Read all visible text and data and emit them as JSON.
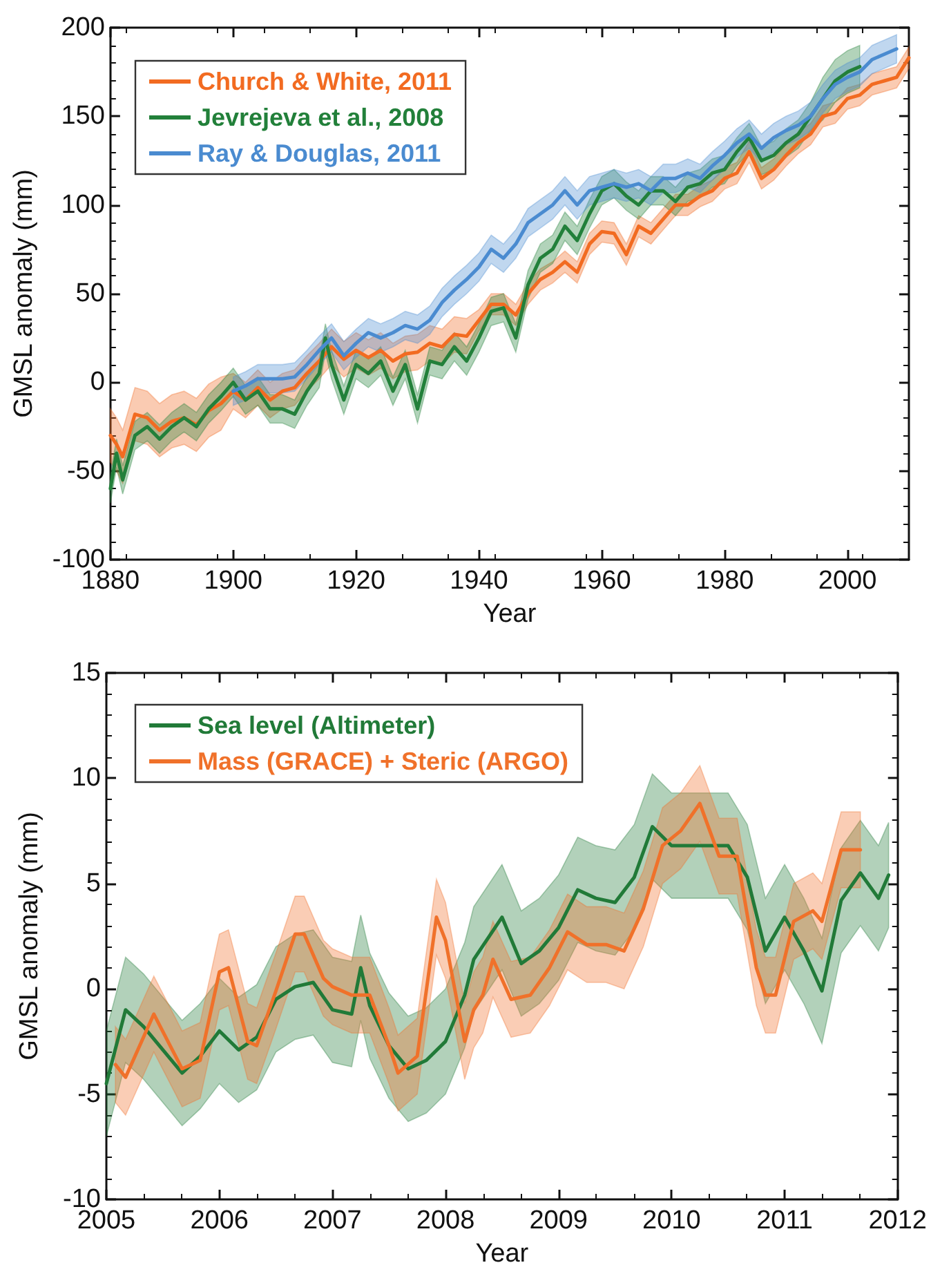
{
  "chart_data": [
    {
      "type": "line",
      "xlabel": "Year",
      "ylabel": "GMSL anomaly (mm)",
      "xlim": [
        1880,
        2010
      ],
      "xticks": [
        1880,
        1900,
        1920,
        1940,
        1960,
        1980,
        2000
      ],
      "ylim": [
        -100,
        200
      ],
      "yticks": [
        -100,
        -50,
        0,
        50,
        100,
        150,
        200
      ],
      "grid": false,
      "legend": "top left",
      "marker": "none",
      "line_style": "solid",
      "series": [
        {
          "name": "Church & White, 2011",
          "color": "#f26b21",
          "x": [
            1880,
            1881,
            1882,
            1884,
            1886,
            1888,
            1890,
            1892,
            1894,
            1896,
            1898,
            1900,
            1902,
            1904,
            1906,
            1908,
            1910,
            1912,
            1914,
            1916,
            1918,
            1920,
            1922,
            1924,
            1926,
            1928,
            1930,
            1932,
            1934,
            1936,
            1938,
            1940,
            1942,
            1944,
            1946,
            1948,
            1950,
            1952,
            1954,
            1956,
            1958,
            1960,
            1962,
            1964,
            1966,
            1968,
            1970,
            1972,
            1974,
            1976,
            1978,
            1980,
            1982,
            1984,
            1986,
            1988,
            1990,
            1992,
            1994,
            1996,
            1998,
            2000,
            2002,
            2004,
            2006,
            2008,
            2010
          ],
          "values": [
            -30,
            -35,
            -42,
            -18,
            -20,
            -27,
            -22,
            -20,
            -24,
            -16,
            -12,
            -5,
            -10,
            -3,
            -10,
            -5,
            -3,
            5,
            12,
            20,
            13,
            18,
            14,
            18,
            12,
            16,
            17,
            22,
            20,
            27,
            26,
            35,
            44,
            44,
            38,
            50,
            58,
            62,
            68,
            62,
            78,
            85,
            84,
            72,
            88,
            84,
            92,
            100,
            100,
            105,
            108,
            115,
            118,
            130,
            115,
            120,
            128,
            135,
            140,
            150,
            152,
            160,
            162,
            168,
            170,
            172,
            183
          ],
          "lower": [
            -45,
            -50,
            -57,
            -33,
            -35,
            -42,
            -37,
            -35,
            -39,
            -31,
            -27,
            -15,
            -20,
            -13,
            -20,
            -15,
            -13,
            -5,
            2,
            10,
            3,
            8,
            4,
            8,
            2,
            6,
            7,
            12,
            10,
            17,
            16,
            29,
            38,
            38,
            32,
            44,
            52,
            56,
            62,
            56,
            72,
            79,
            78,
            66,
            82,
            78,
            86,
            94,
            94,
            99,
            102,
            109,
            112,
            124,
            109,
            114,
            122,
            129,
            134,
            144,
            146,
            154,
            156,
            162,
            164,
            166,
            177
          ],
          "upper": [
            -15,
            -20,
            -27,
            -3,
            -5,
            -12,
            -7,
            -5,
            -9,
            -1,
            3,
            5,
            0,
            7,
            0,
            5,
            7,
            15,
            22,
            30,
            23,
            28,
            24,
            28,
            22,
            26,
            27,
            32,
            30,
            37,
            36,
            41,
            50,
            50,
            44,
            56,
            64,
            68,
            74,
            68,
            84,
            91,
            90,
            78,
            94,
            90,
            98,
            106,
            106,
            111,
            114,
            121,
            124,
            136,
            121,
            126,
            134,
            141,
            146,
            156,
            158,
            166,
            168,
            174,
            176,
            178,
            189
          ]
        },
        {
          "name": "Jevrejeva et al., 2008",
          "color": "#22803a",
          "x": [
            1880,
            1881,
            1882,
            1884,
            1886,
            1888,
            1890,
            1892,
            1894,
            1896,
            1898,
            1900,
            1902,
            1904,
            1906,
            1908,
            1910,
            1912,
            1914,
            1915,
            1916,
            1918,
            1920,
            1922,
            1924,
            1926,
            1928,
            1930,
            1932,
            1934,
            1936,
            1938,
            1940,
            1942,
            1944,
            1946,
            1948,
            1950,
            1952,
            1954,
            1956,
            1958,
            1960,
            1962,
            1964,
            1966,
            1968,
            1970,
            1972,
            1974,
            1976,
            1978,
            1980,
            1982,
            1984,
            1986,
            1988,
            1990,
            1992,
            1994,
            1996,
            1998,
            2000,
            2002
          ],
          "values": [
            -60,
            -40,
            -55,
            -30,
            -25,
            -32,
            -25,
            -20,
            -25,
            -15,
            -8,
            0,
            -10,
            -5,
            -15,
            -15,
            -18,
            -5,
            5,
            25,
            10,
            -10,
            10,
            5,
            12,
            -5,
            10,
            -15,
            12,
            10,
            20,
            12,
            25,
            40,
            42,
            25,
            55,
            70,
            75,
            88,
            80,
            95,
            108,
            112,
            105,
            100,
            108,
            108,
            102,
            110,
            112,
            118,
            120,
            130,
            138,
            125,
            128,
            135,
            140,
            150,
            160,
            170,
            175,
            178
          ],
          "lower": [
            -68,
            -48,
            -63,
            -38,
            -33,
            -40,
            -33,
            -28,
            -33,
            -23,
            -16,
            -8,
            -18,
            -13,
            -23,
            -23,
            -26,
            -13,
            -3,
            17,
            2,
            -18,
            2,
            -3,
            4,
            -13,
            2,
            -23,
            4,
            2,
            12,
            4,
            17,
            32,
            34,
            17,
            47,
            62,
            67,
            80,
            72,
            87,
            100,
            104,
            97,
            92,
            100,
            100,
            94,
            102,
            104,
            110,
            112,
            122,
            130,
            117,
            120,
            127,
            132,
            142,
            148,
            158,
            163,
            166
          ],
          "upper": [
            -52,
            -32,
            -47,
            -22,
            -17,
            -24,
            -17,
            -12,
            -17,
            -7,
            0,
            8,
            -2,
            3,
            -7,
            -7,
            -10,
            3,
            13,
            33,
            18,
            -2,
            18,
            13,
            20,
            3,
            18,
            -7,
            20,
            18,
            28,
            20,
            33,
            48,
            50,
            33,
            63,
            78,
            83,
            96,
            88,
            103,
            116,
            120,
            113,
            108,
            116,
            116,
            110,
            118,
            120,
            126,
            128,
            138,
            146,
            133,
            136,
            143,
            148,
            158,
            172,
            182,
            187,
            190
          ]
        },
        {
          "name": "Ray & Douglas, 2011",
          "color": "#4a8bd0",
          "x": [
            1900,
            1902,
            1904,
            1906,
            1908,
            1910,
            1912,
            1914,
            1916,
            1918,
            1920,
            1922,
            1924,
            1926,
            1928,
            1930,
            1932,
            1934,
            1936,
            1938,
            1940,
            1942,
            1944,
            1946,
            1948,
            1950,
            1952,
            1954,
            1956,
            1958,
            1960,
            1962,
            1964,
            1966,
            1968,
            1970,
            1972,
            1974,
            1976,
            1978,
            1980,
            1982,
            1984,
            1986,
            1988,
            1990,
            1992,
            1994,
            1996,
            1998,
            2000,
            2002,
            2004,
            2006,
            2008
          ],
          "values": [
            -5,
            -2,
            2,
            2,
            2,
            3,
            10,
            18,
            25,
            15,
            22,
            28,
            25,
            28,
            32,
            30,
            35,
            45,
            52,
            58,
            65,
            75,
            70,
            78,
            90,
            95,
            100,
            108,
            100,
            108,
            110,
            112,
            110,
            112,
            108,
            115,
            115,
            118,
            115,
            122,
            128,
            135,
            140,
            132,
            138,
            142,
            145,
            150,
            160,
            168,
            172,
            175,
            182,
            185,
            188
          ],
          "lower": [
            -13,
            -10,
            -6,
            -6,
            -6,
            -5,
            2,
            10,
            17,
            7,
            14,
            20,
            17,
            20,
            24,
            22,
            27,
            37,
            44,
            50,
            57,
            67,
            62,
            70,
            82,
            87,
            92,
            100,
            92,
            100,
            102,
            104,
            102,
            104,
            100,
            107,
            107,
            110,
            107,
            114,
            120,
            127,
            132,
            124,
            130,
            134,
            137,
            142,
            152,
            160,
            164,
            167,
            174,
            177,
            180
          ],
          "upper": [
            3,
            6,
            10,
            10,
            10,
            11,
            18,
            26,
            33,
            23,
            30,
            36,
            33,
            36,
            40,
            38,
            43,
            53,
            60,
            66,
            73,
            83,
            78,
            86,
            98,
            103,
            108,
            116,
            108,
            116,
            118,
            120,
            118,
            120,
            116,
            123,
            123,
            126,
            123,
            130,
            136,
            143,
            148,
            140,
            146,
            150,
            153,
            158,
            168,
            176,
            180,
            183,
            190,
            193,
            196
          ]
        }
      ]
    },
    {
      "type": "line",
      "xlabel": "Year",
      "ylabel": "GMSL anomaly (mm)",
      "xlim": [
        2005,
        2012
      ],
      "xticks": [
        2005,
        2006,
        2007,
        2008,
        2009,
        2010,
        2011,
        2012
      ],
      "ylim": [
        -10,
        15
      ],
      "yticks": [
        -10,
        -5,
        0,
        5,
        10,
        15
      ],
      "grid": false,
      "legend": "top left",
      "marker": "none",
      "line_style": "solid",
      "series": [
        {
          "name": "Sea level (Altimeter)",
          "color": "#217a38",
          "x": [
            2005,
            2005.17,
            2005.33,
            2005.5,
            2005.67,
            2005.83,
            2006,
            2006.17,
            2006.33,
            2006.5,
            2006.67,
            2006.83,
            2007,
            2007.17,
            2007.25,
            2007.33,
            2007.5,
            2007.67,
            2007.83,
            2008,
            2008.17,
            2008.25,
            2008.5,
            2008.67,
            2008.83,
            2009,
            2009.17,
            2009.33,
            2009.5,
            2009.67,
            2009.83,
            2010,
            2010.25,
            2010.5,
            2010.67,
            2010.83,
            2011,
            2011.17,
            2011.33,
            2011.5,
            2011.67,
            2011.83,
            2011.92
          ],
          "values": [
            -4.5,
            -1,
            -1.8,
            -2.9,
            -4,
            -3.2,
            -2,
            -2.9,
            -2.3,
            -0.5,
            0.1,
            0.3,
            -1,
            -1.2,
            1,
            -0.8,
            -2.7,
            -3.8,
            -3.4,
            -2.5,
            -0.3,
            1.4,
            3.4,
            1.2,
            1.8,
            2.9,
            4.7,
            4.3,
            4.1,
            5.3,
            7.7,
            6.8,
            6.8,
            6.8,
            5.3,
            1.8,
            3.4,
            1.8,
            -0.1,
            4.2,
            5.5,
            4.3,
            5.4
          ],
          "lower": [
            -7,
            -3.5,
            -4.3,
            -5.4,
            -6.5,
            -5.7,
            -4.5,
            -5.4,
            -4.8,
            -3,
            -2.4,
            -2.2,
            -3.5,
            -3.7,
            -1.5,
            -3.3,
            -5.2,
            -6.3,
            -5.9,
            -5,
            -2.8,
            -1.1,
            0.9,
            -1.3,
            -0.7,
            0.4,
            2.2,
            1.8,
            1.6,
            2.8,
            5.2,
            4.3,
            4.3,
            4.3,
            2.8,
            -0.7,
            0.9,
            -0.7,
            -2.6,
            1.7,
            3,
            1.8,
            2.9
          ],
          "upper": [
            -2,
            1.5,
            0.7,
            -0.4,
            -1.5,
            -0.7,
            0.5,
            -0.4,
            0.2,
            2,
            2.6,
            2.8,
            1.5,
            1.3,
            3.5,
            1.7,
            -0.2,
            -1.3,
            -0.9,
            0,
            2.2,
            3.9,
            5.9,
            3.7,
            4.3,
            5.4,
            7.2,
            6.8,
            6.6,
            7.8,
            10.2,
            9.3,
            9.3,
            9.3,
            7.8,
            4.3,
            5.9,
            4.3,
            2.4,
            6.7,
            8,
            6.8,
            7.9
          ]
        },
        {
          "name": "Mass (GRACE) + Steric (ARGO)",
          "color": "#f0712a",
          "x": [
            2005.08,
            2005.17,
            2005.42,
            2005.67,
            2005.83,
            2006,
            2006.08,
            2006.25,
            2006.33,
            2006.5,
            2006.67,
            2006.75,
            2006.92,
            2007,
            2007.17,
            2007.33,
            2007.5,
            2007.58,
            2007.75,
            2007.92,
            2008,
            2008.17,
            2008.25,
            2008.33,
            2008.42,
            2008.58,
            2008.75,
            2008.92,
            2009.08,
            2009.25,
            2009.42,
            2009.58,
            2009.75,
            2009.92,
            2010.08,
            2010.25,
            2010.42,
            2010.58,
            2010.75,
            2010.83,
            2010.92,
            2011.08,
            2011.25,
            2011.33,
            2011.5,
            2011.67
          ],
          "values": [
            -3.6,
            -4.2,
            -1.2,
            -3.8,
            -3.4,
            0.8,
            1,
            -2.5,
            -2.7,
            -0.1,
            2.6,
            2.6,
            0.5,
            0.1,
            -0.3,
            -0.3,
            -2.7,
            -4,
            -3.2,
            3.4,
            2.3,
            -2.5,
            -1,
            -0.3,
            1.4,
            -0.5,
            -0.3,
            1,
            2.7,
            2.1,
            2.1,
            1.8,
            3.8,
            6.8,
            7.5,
            8.8,
            6.3,
            6.3,
            1,
            -0.3,
            -0.3,
            3.2,
            3.7,
            3.2,
            6.6,
            6.6
          ],
          "lower": [
            -5.4,
            -6,
            -3,
            -5.6,
            -5.2,
            -1,
            -0.8,
            -4.3,
            -4.5,
            -1.9,
            0.8,
            0.8,
            -1.3,
            -1.7,
            -2.1,
            -2.1,
            -4.5,
            -5.8,
            -5,
            1.6,
            0.5,
            -4.3,
            -2.8,
            -2.1,
            -0.4,
            -2.3,
            -2.1,
            -0.8,
            0.9,
            0.3,
            0.3,
            0,
            2,
            5,
            5.7,
            7,
            4.5,
            4.5,
            -0.8,
            -2.1,
            -2.1,
            1.4,
            1.9,
            1.4,
            4.8,
            4.8
          ],
          "upper": [
            -1.8,
            -2.4,
            0.6,
            -2,
            -1.6,
            2.6,
            2.8,
            -0.7,
            -0.9,
            1.7,
            4.4,
            4.4,
            2.3,
            1.9,
            1.5,
            1.5,
            -0.9,
            -2.2,
            -1.4,
            5.2,
            4.1,
            -0.7,
            0.8,
            1.5,
            3.2,
            1.3,
            1.5,
            2.8,
            4.5,
            3.9,
            3.9,
            3.6,
            5.6,
            8.6,
            9.3,
            10.6,
            8.1,
            8.1,
            2.8,
            1.5,
            1.5,
            5,
            5.5,
            5,
            8.4,
            8.4
          ]
        }
      ]
    }
  ]
}
